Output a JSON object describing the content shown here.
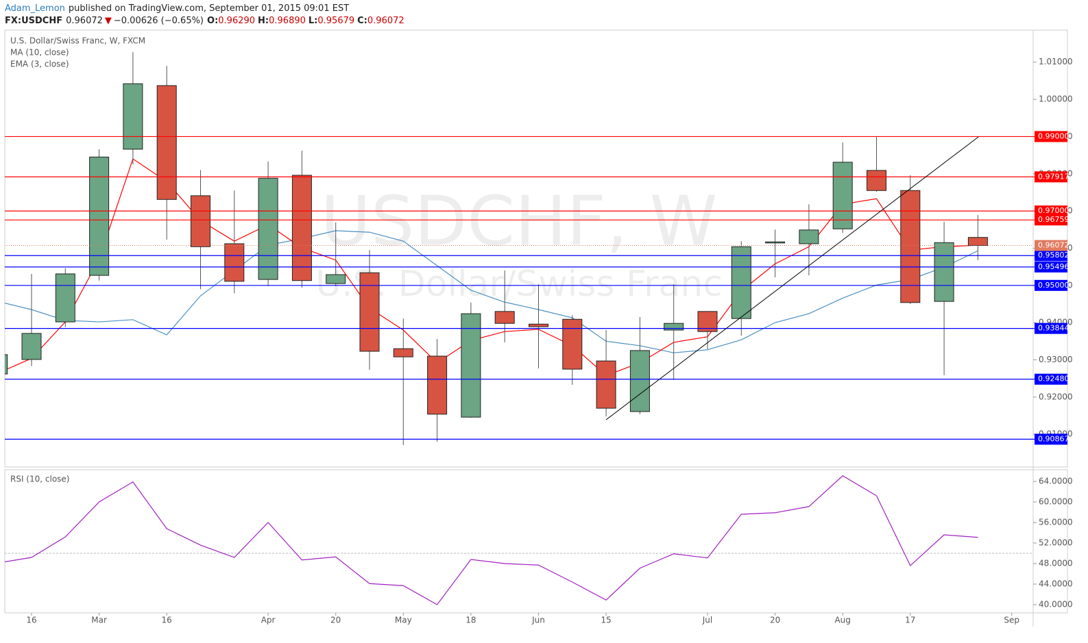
{
  "header": {
    "author": "Adam_Lemon",
    "published": "published on TradingView.com, September 01, 2015 09:01 EST",
    "symbol": "FX:USDCHF",
    "price": "0.96072",
    "arrow": "▼",
    "change": "−0.00626 (−0.65%)",
    "o_label": "O:",
    "o": "0.96290",
    "h_label": "H:",
    "h": "0.96890",
    "l_label": "L:",
    "l": "0.95679",
    "c_label": "C:",
    "c": "0.96072"
  },
  "chart_data": [
    {
      "type": "candlestick",
      "title": "U.S. Dollar/Swiss Franc, W, FXCM",
      "watermark": "USDCHF, W",
      "watermark_subtitle": "U.S. Dollar/Swiss Franc",
      "categories": [
        null,
        "16",
        null,
        "Mar",
        null,
        "16",
        null,
        null,
        "Apr",
        null,
        "20",
        null,
        "May",
        null,
        "18",
        null,
        "Jun",
        null,
        "15",
        null,
        null,
        "Jul",
        null,
        "20",
        null,
        "Aug",
        null,
        "17",
        null,
        null,
        "Sep"
      ],
      "open": [
        0.9262,
        0.9301,
        0.9402,
        0.9527,
        0.9866,
        1.0037,
        0.9741,
        0.9612,
        0.9516,
        0.9796,
        0.9505,
        0.9534,
        0.933,
        0.931,
        0.9146,
        0.943,
        0.9396,
        0.9409,
        0.9297,
        0.9161,
        0.938,
        0.943,
        0.9411,
        0.9614,
        0.9612,
        0.9652,
        0.9809,
        0.9755,
        0.9457,
        0.9629,
        null
      ],
      "high": [
        0.9318,
        0.9531,
        0.9546,
        0.9866,
        1.0127,
        1.009,
        0.981,
        0.9755,
        0.9833,
        0.9862,
        0.9669,
        0.9595,
        0.9411,
        0.9356,
        0.9454,
        0.954,
        0.9503,
        0.942,
        0.938,
        0.9415,
        0.9503,
        0.943,
        0.9619,
        0.965,
        0.9718,
        0.9884,
        0.9899,
        0.9796,
        0.9671,
        0.9689,
        null
      ],
      "low": [
        0.9259,
        0.9283,
        0.9388,
        0.9513,
        0.9825,
        0.9623,
        0.949,
        0.9479,
        0.9498,
        0.9494,
        0.9498,
        0.9273,
        0.9071,
        0.908,
        0.9144,
        0.9347,
        0.9277,
        0.9233,
        0.9148,
        0.9154,
        0.9246,
        0.9328,
        0.9365,
        0.9522,
        0.9527,
        0.9641,
        0.9752,
        0.945,
        0.9259,
        0.95679,
        null
      ],
      "close": [
        0.9314,
        0.9371,
        0.9531,
        0.9845,
        1.0042,
        0.9731,
        0.9604,
        0.9511,
        0.9788,
        0.9513,
        0.9529,
        0.9323,
        0.9308,
        0.9154,
        0.9424,
        0.9398,
        0.9389,
        0.9275,
        0.917,
        0.9325,
        0.9398,
        0.9376,
        0.9604,
        0.9617,
        0.9649,
        0.9831,
        0.9755,
        0.9454,
        0.9615,
        0.96072,
        null
      ],
      "up_color": "#6ba583",
      "down_color": "#d75442",
      "series": [
        {
          "name": "MA (10, close)",
          "color": "#4a90c2",
          "values": [
            0.9457,
            0.9435,
            0.9406,
            0.9402,
            0.9408,
            0.9367,
            0.9472,
            0.954,
            0.9608,
            0.9626,
            0.9647,
            0.9643,
            0.9619,
            0.9553,
            0.9487,
            0.9455,
            0.9435,
            0.9413,
            0.935,
            0.9338,
            0.9319,
            0.9327,
            0.9354,
            0.94,
            0.9424,
            0.9466,
            0.9501,
            0.9516,
            0.9549,
            0.9593,
            null
          ]
        },
        {
          "name": "EMA (3, close)",
          "color": "#ff0000",
          "values": [
            0.9264,
            0.9304,
            0.9402,
            0.9571,
            0.984,
            0.9779,
            0.9674,
            0.9619,
            0.9663,
            0.9601,
            0.9568,
            0.9439,
            0.938,
            0.9292,
            0.9352,
            0.9376,
            0.9382,
            0.9338,
            0.9258,
            0.9292,
            0.9347,
            0.9362,
            0.9485,
            0.9558,
            0.9604,
            0.9718,
            0.9733,
            0.9595,
            0.9604,
            0.9608,
            null
          ]
        }
      ],
      "hlines": [
        {
          "value": 0.99,
          "label": "0.99000",
          "color": "#ff0000"
        },
        {
          "value": 0.97917,
          "label": "0.97917",
          "color": "#ff0000"
        },
        {
          "value": 0.97,
          "label": "0.97000",
          "color": "#ff0000"
        },
        {
          "value": 0.96759,
          "label": "0.96759",
          "color": "#ff0000"
        },
        {
          "value": 0.95802,
          "label": "0.95802",
          "color": "#0000ff"
        },
        {
          "value": 0.95496,
          "label": "0.95496",
          "color": "#0000ff"
        },
        {
          "value": 0.95,
          "label": "0.95000",
          "color": "#0000ff"
        },
        {
          "value": 0.93844,
          "label": "0.93844",
          "color": "#0000ff"
        },
        {
          "value": 0.9248,
          "label": "0.92480",
          "color": "#0000ff"
        },
        {
          "value": 0.90867,
          "label": "0.90867",
          "color": "#0000ff"
        }
      ],
      "last_price": {
        "value": 0.96072,
        "label": "0.96072",
        "color": "#e07a5f"
      },
      "ylim": [
        0.9012,
        1.0186
      ],
      "yticks": [
        {
          "value": 0.91,
          "label": "0.91000"
        },
        {
          "value": 0.92,
          "label": "0.92000"
        },
        {
          "value": 0.93,
          "label": "0.93000"
        },
        {
          "value": 0.94,
          "label": "0.94000"
        },
        {
          "value": 0.95,
          "label": "0.95000"
        },
        {
          "value": 0.96,
          "label": "0.96000"
        },
        {
          "value": 0.97,
          "label": "0.97000"
        },
        {
          "value": 0.98,
          "label": "0.98000"
        },
        {
          "value": 0.99,
          "label": "0.99000"
        },
        {
          "value": 1,
          "label": "1.00000"
        },
        {
          "value": 1.01,
          "label": "1.01000"
        }
      ]
    },
    {
      "type": "line",
      "series": [
        {
          "name": "RSI (10, close)",
          "color": "#a020c0",
          "values": [
            48.1,
            49.2,
            53.2,
            60.0,
            63.9,
            54.8,
            51.6,
            49.2,
            56.0,
            48.7,
            49.3,
            44.1,
            43.7,
            40.0,
            48.8,
            48.0,
            47.7,
            44.4,
            40.9,
            47.1,
            49.9,
            49.1,
            57.6,
            57.9,
            59.1,
            65.1,
            61.2,
            47.6,
            53.6,
            53.1,
            null
          ]
        }
      ],
      "midline": 50,
      "ylim": [
        38.4,
        66.27
      ],
      "yticks": [
        {
          "value": 40,
          "label": "40.0000"
        },
        {
          "value": 44,
          "label": "44.0000"
        },
        {
          "value": 48,
          "label": "48.0000"
        },
        {
          "value": 52,
          "label": "52.0000"
        },
        {
          "value": 56,
          "label": "56.0000"
        },
        {
          "value": 60,
          "label": "60.0000"
        },
        {
          "value": 64,
          "label": "64.0000"
        }
      ]
    }
  ]
}
